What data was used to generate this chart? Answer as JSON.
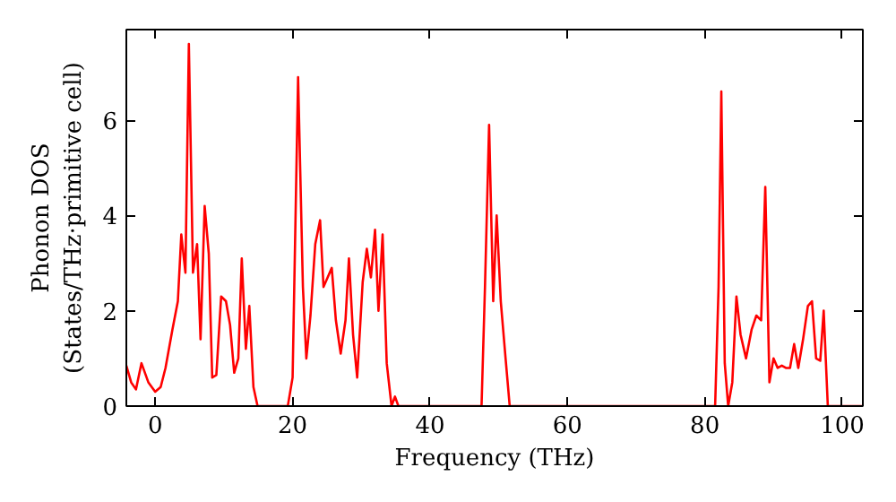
{
  "chart_data": {
    "type": "line",
    "xlabel": "Frequency (THz)",
    "ylabel": "Phonon DOS\n(States/THz·primitive cell)",
    "xlim": [
      -4.2,
      103
    ],
    "ylim": [
      0,
      7.9
    ],
    "xticks": [
      0,
      20,
      40,
      60,
      80,
      100
    ],
    "yticks": [
      0,
      2,
      4,
      6
    ],
    "grid": false,
    "series": [
      {
        "color": "#ff0000",
        "x": [
          -4.2,
          -3.5,
          -2.8,
          -2,
          -1,
          0,
          0.8,
          1.5,
          2.5,
          3.3,
          3.8,
          4.4,
          4.9,
          5.5,
          6.1,
          6.6,
          7.2,
          7.8,
          8.3,
          8.9,
          9.6,
          10.3,
          10.9,
          11.5,
          12.1,
          12.6,
          13.2,
          13.7,
          14.3,
          14.9,
          19.3,
          20,
          20.8,
          21.5,
          22,
          22.6,
          23.3,
          24,
          24.5,
          25.1,
          25.7,
          26.3,
          27,
          27.7,
          28.2,
          28.8,
          29.4,
          30.2,
          30.8,
          31.4,
          32,
          32.5,
          33.1,
          33.7,
          34.4,
          34.9,
          35.4,
          47.5,
          48,
          48.6,
          49.2,
          49.7,
          50.3,
          51,
          51.6,
          81.5,
          82,
          82.4,
          82.9,
          83.4,
          84,
          84.6,
          85.2,
          86,
          86.8,
          87.5,
          88.2,
          88.8,
          89.4,
          90,
          90.6,
          91.2,
          91.8,
          92.4,
          93,
          93.6,
          94.3,
          95,
          95.6,
          96.2,
          96.8,
          97.3,
          97.9,
          103
        ],
        "values": [
          0.85,
          0.5,
          0.35,
          0.9,
          0.5,
          0.3,
          0.4,
          0.8,
          1.6,
          2.2,
          3.6,
          2.8,
          7.6,
          2.8,
          3.4,
          1.4,
          4.2,
          3.2,
          0.6,
          0.65,
          2.3,
          2.2,
          1.7,
          0.7,
          1.0,
          3.1,
          1.2,
          2.1,
          0.4,
          0,
          0,
          0.6,
          6.9,
          2.5,
          1.0,
          1.9,
          3.4,
          3.9,
          2.5,
          2.7,
          2.9,
          1.8,
          1.1,
          1.8,
          3.1,
          1.5,
          0.6,
          2.6,
          3.3,
          2.7,
          3.7,
          2.0,
          3.6,
          0.9,
          0,
          0.2,
          0,
          0,
          2.5,
          5.9,
          2.2,
          4.0,
          2.2,
          1.0,
          0,
          0,
          2.5,
          6.6,
          0.9,
          0,
          0.5,
          2.3,
          1.5,
          1.0,
          1.6,
          1.9,
          1.8,
          4.6,
          0.5,
          1.0,
          0.8,
          0.85,
          0.8,
          0.8,
          1.3,
          0.8,
          1.4,
          2.1,
          2.2,
          1.0,
          0.95,
          2.0,
          0,
          0
        ]
      }
    ]
  }
}
